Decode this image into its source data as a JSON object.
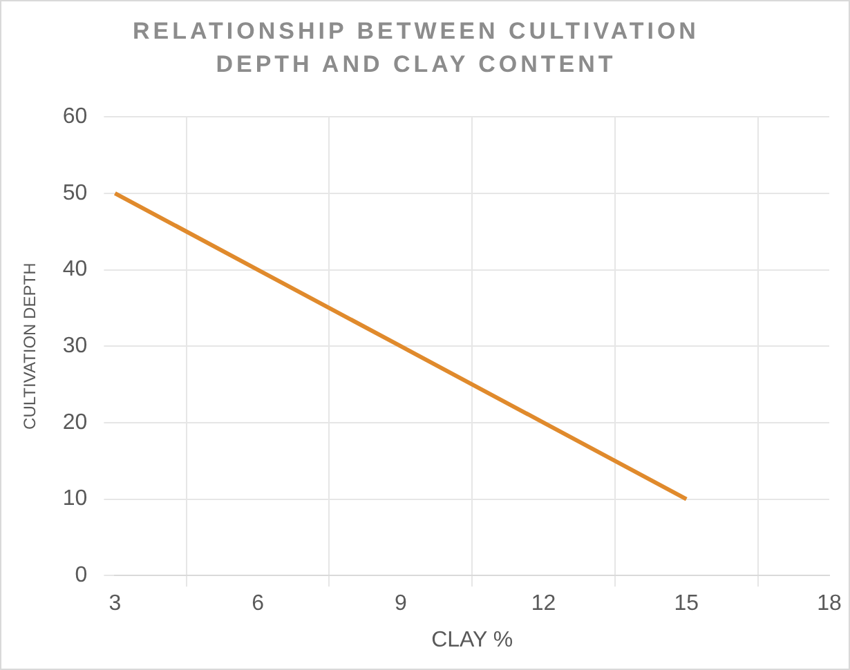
{
  "chart_data": {
    "type": "line",
    "title": "RELATIONSHIP BETWEEN CULTIVATION DEPTH AND CLAY CONTENT",
    "xlabel": "CLAY %",
    "ylabel": "CULTIVATION DEPTH",
    "categories": [
      "3",
      "6",
      "9",
      "12",
      "15",
      "18"
    ],
    "series": [
      {
        "color": "#e08a2c",
        "values": [
          50,
          40,
          30,
          20,
          10,
          null
        ]
      }
    ],
    "ylim": [
      0,
      60
    ],
    "yticks": [
      0,
      10,
      20,
      30,
      40,
      50,
      60
    ],
    "grid": true,
    "legend": false,
    "marker": "none",
    "line_style": "solid"
  }
}
